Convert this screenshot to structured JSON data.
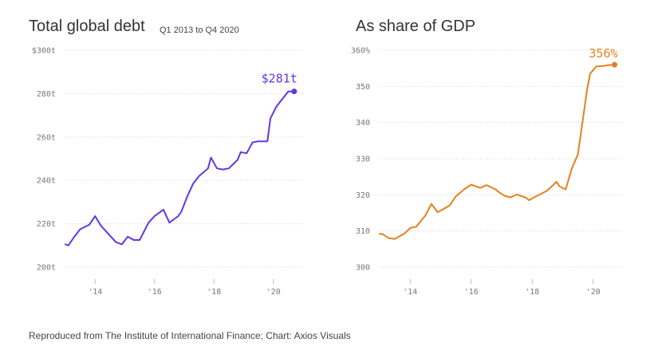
{
  "chart_data": [
    {
      "type": "line",
      "title": "Total global debt",
      "subtitle": "Q1 2013 to Q4 2020",
      "y_tick_labels": [
        "200t",
        "220t",
        "240t",
        "260t",
        "280t",
        "$300t"
      ],
      "y_ticks": [
        200,
        220,
        240,
        260,
        280,
        300
      ],
      "x_tick_labels": [
        "'14",
        "'16",
        "'18",
        "'20"
      ],
      "x_ticks": [
        2014,
        2016,
        2018,
        2020
      ],
      "xlim": [
        2013,
        2021
      ],
      "ylim": [
        200,
        300
      ],
      "grid": "horizontal dotted",
      "end_label": "$281t",
      "color": "#6236e8",
      "series": [
        {
          "x": [
            2013.0,
            2013.1,
            2013.3,
            2013.5,
            2013.8,
            2014.0,
            2014.2,
            2014.5,
            2014.7,
            2014.9,
            2015.1,
            2015.3,
            2015.5,
            2015.8,
            2016.0,
            2016.3,
            2016.5,
            2016.8,
            2016.9,
            2017.1,
            2017.3,
            2017.5,
            2017.8,
            2017.9,
            2018.1,
            2018.3,
            2018.5,
            2018.8,
            2018.9,
            2019.1,
            2019.3,
            2019.5,
            2019.8,
            2019.9,
            2020.1,
            2020.3,
            2020.5,
            2020.7
          ],
          "y": [
            210.5,
            210,
            214,
            217.5,
            219.5,
            223.5,
            219,
            214.5,
            211.5,
            210.5,
            214,
            212.5,
            212.5,
            220.5,
            223.5,
            226.5,
            220.5,
            223.5,
            225.5,
            232.5,
            238.5,
            242,
            245.5,
            250.5,
            245.5,
            245,
            245.5,
            249.5,
            253,
            252.5,
            257.5,
            258,
            258,
            268.5,
            274,
            277.5,
            281,
            281
          ]
        }
      ]
    },
    {
      "type": "line",
      "title": "As share of GDP",
      "y_tick_labels": [
        "300",
        "310",
        "320",
        "330",
        "340",
        "350",
        "360%"
      ],
      "y_ticks": [
        300,
        310,
        320,
        330,
        340,
        350,
        360
      ],
      "x_tick_labels": [
        "'14",
        "'16",
        "'18",
        "'20"
      ],
      "x_ticks": [
        2014,
        2016,
        2018,
        2020
      ],
      "xlim": [
        2013,
        2021
      ],
      "ylim": [
        300,
        360
      ],
      "grid": "horizontal dotted",
      "end_label": "356%",
      "color": "#e87f1e",
      "series": [
        {
          "x": [
            2013.0,
            2013.1,
            2013.3,
            2013.5,
            2013.8,
            2014.0,
            2014.2,
            2014.5,
            2014.7,
            2014.9,
            2015.1,
            2015.3,
            2015.5,
            2015.8,
            2016.0,
            2016.3,
            2016.5,
            2016.8,
            2016.9,
            2017.1,
            2017.3,
            2017.5,
            2017.8,
            2017.9,
            2018.1,
            2018.3,
            2018.5,
            2018.8,
            2018.9,
            2019.1,
            2019.3,
            2019.5,
            2019.8,
            2019.9,
            2020.1,
            2020.3,
            2020.5,
            2020.7
          ],
          "y": [
            309.2,
            309.1,
            308,
            307.8,
            309.2,
            310.8,
            311.2,
            314.3,
            317.5,
            315.2,
            316.1,
            317.1,
            319.6,
            321.7,
            322.8,
            321.9,
            322.7,
            321.5,
            320.8,
            319.7,
            319.3,
            320.1,
            319.2,
            318.5,
            319.5,
            320.3,
            321.2,
            323.6,
            322.3,
            321.5,
            327.3,
            331.2,
            349.1,
            353.5,
            355.5,
            355.6,
            355.9,
            356
          ]
        }
      ]
    }
  ],
  "source": "Reproduced from The Institute of International Finance; Chart: Axios Visuals"
}
